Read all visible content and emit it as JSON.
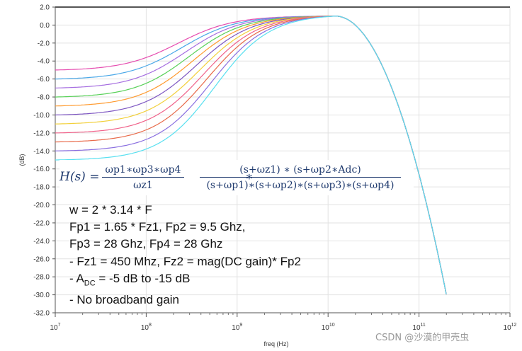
{
  "chart_data": {
    "type": "line",
    "title": "",
    "xlabel": "freq (Hz)",
    "ylabel": "(dB)",
    "x_scale": "log",
    "x_range": [
      10000000,
      1000000000000
    ],
    "x_ticks": [
      {
        "value": 10000000,
        "exp": "7"
      },
      {
        "value": 100000000,
        "exp": "8"
      },
      {
        "value": 1000000000,
        "exp": "9"
      },
      {
        "value": 10000000000,
        "exp": "10"
      },
      {
        "value": 100000000000,
        "exp": "11"
      },
      {
        "value": 1000000000000,
        "exp": "12"
      }
    ],
    "ylim": [
      -32.0,
      2.0
    ],
    "y_ticks": [
      "2.0",
      "0.0",
      "-2.0",
      "-4.0",
      "-6.0",
      "-8.0",
      "-10.0",
      "-12.0",
      "-14.0",
      "-16.0",
      "-18.0",
      "-20.0",
      "-22.0",
      "-24.0",
      "-26.0",
      "-28.0",
      "-30.0",
      "-32.0"
    ],
    "grid": true,
    "legend": "none",
    "series": [
      {
        "dc_db": -5,
        "color": "#e64db0"
      },
      {
        "dc_db": -6,
        "color": "#4aa8e8"
      },
      {
        "dc_db": -7,
        "color": "#a56de0"
      },
      {
        "dc_db": -8,
        "color": "#59d159"
      },
      {
        "dc_db": -9,
        "color": "#ff9a2e"
      },
      {
        "dc_db": -10,
        "color": "#7e57c2"
      },
      {
        "dc_db": -11,
        "color": "#f2d03b"
      },
      {
        "dc_db": -12,
        "color": "#f0628a"
      },
      {
        "dc_db": -13,
        "color": "#e86a4a"
      },
      {
        "dc_db": -14,
        "color": "#8a6fe0"
      },
      {
        "dc_db": -15,
        "color": "#59e0f0"
      }
    ],
    "peak_db": 1.0,
    "peak_freq_hz": 12000000000,
    "end_point": {
      "x": 200000000000,
      "y": -30
    }
  },
  "formula": {
    "lhs": "H(s) =",
    "frac1_num": "ωp1∗ωp3∗ωp4",
    "frac1_den": "ωz1",
    "times": "∗",
    "frac2_num": "(s+ωz1) ∗ (s+ωp2∗Adc)",
    "frac2_den": "(s+ωp1)∗(s+ωp2)∗(s+ωp3)∗(s+ωp4)"
  },
  "notes": {
    "line1": "w = 2  * 3.14 * F",
    "line2": "Fp1 = 1.65 * Fz1, Fp2 = 9.5 Ghz,",
    "line3": "Fp3 = 28 Ghz, Fp4 = 28 Ghz",
    "line4": "- Fz1 = 450 Mhz, Fz2 = mag(DC gain)* Fp2",
    "line5_prefix": "- A",
    "line5_sub": "DC",
    "line5_suffix": " = -5 dB to -15 dB",
    "line6": "- No broadband gain"
  },
  "watermark": "CSDN @沙漠的甲壳虫"
}
